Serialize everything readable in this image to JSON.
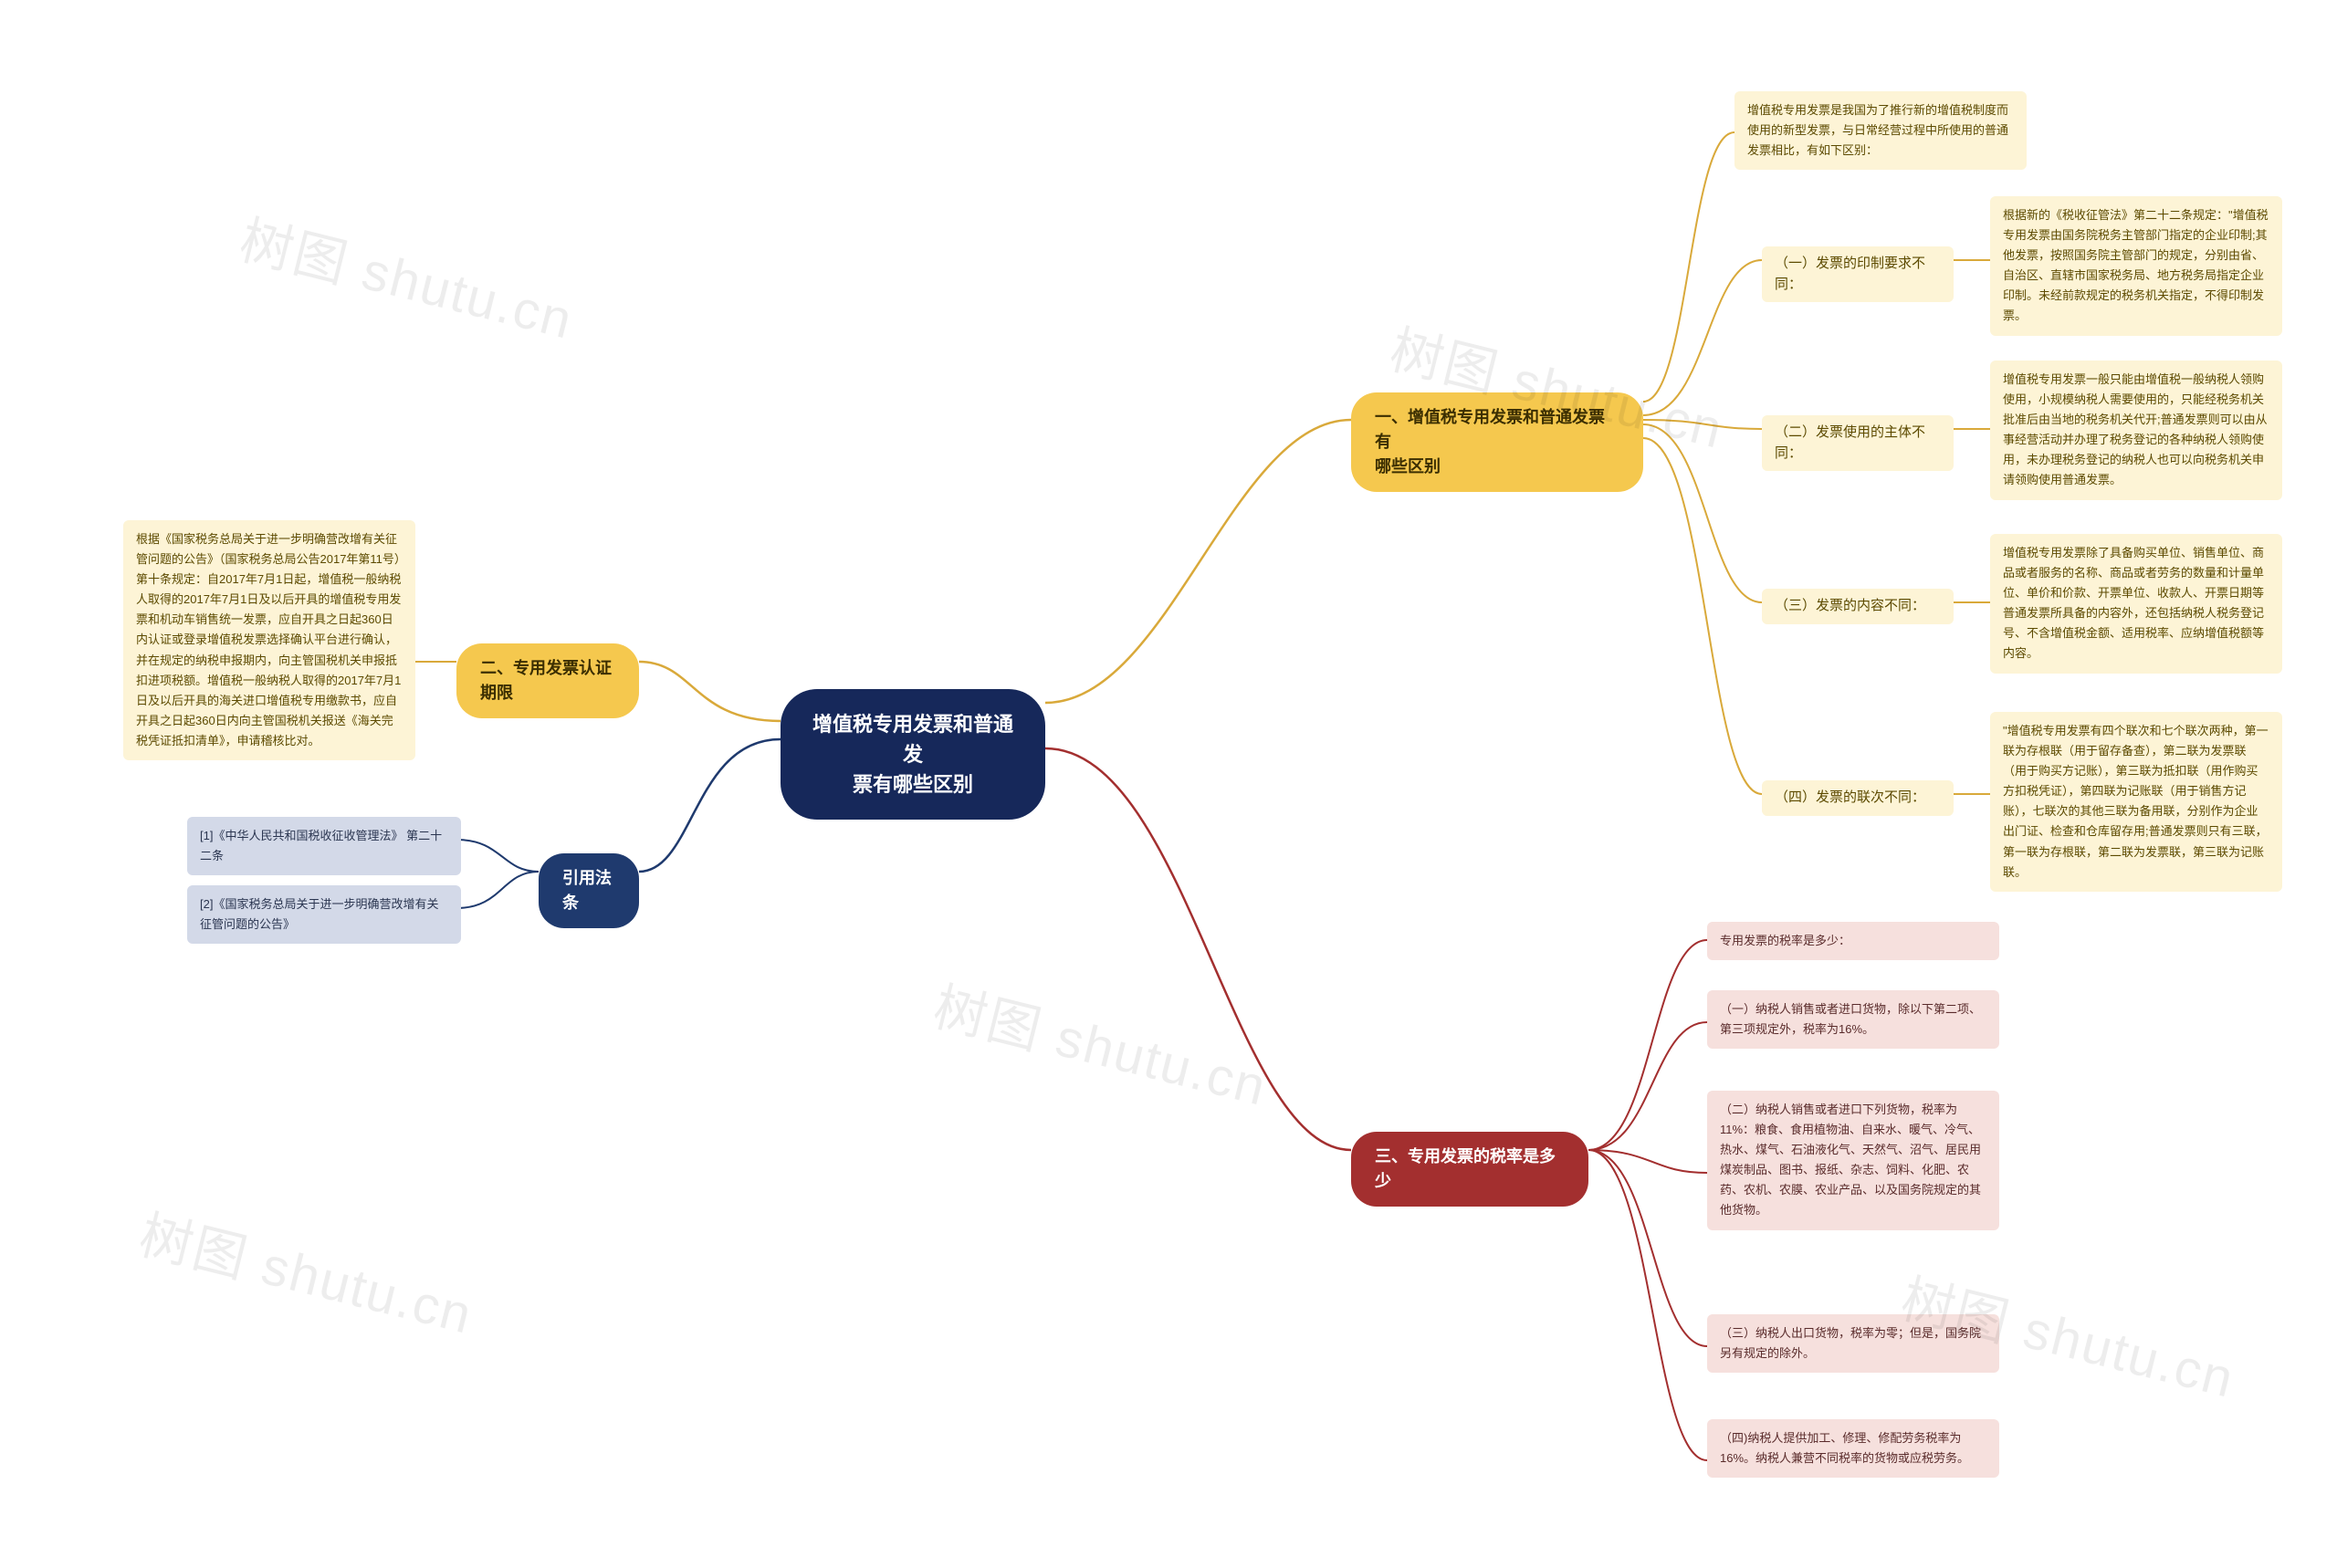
{
  "colors": {
    "center_bg": "#16285a",
    "center_text": "#ffffff",
    "yellow_bg": "#f5c84e",
    "yellow_text": "#3b2e00",
    "yellow_leaf_bg": "#fdf4d6",
    "yellow_leaf_text": "#5c4a00",
    "navy_bg": "#1f3a6e",
    "navy_text": "#ffffff",
    "navy_leaf_bg": "#d3d9e8",
    "navy_leaf_text": "#2a3550",
    "red_bg": "#a32f2f",
    "red_text": "#ffffff",
    "red_leaf_bg": "#f6e0dd",
    "red_leaf_text": "#5a2b2b",
    "edge_yellow": "#d9a93a",
    "edge_navy": "#1f3a6e",
    "edge_red": "#a32f2f",
    "watermark_color": "rgba(0,0,0,0.07)"
  },
  "center": {
    "text": "增值税专用发票和普通发\n票有哪些区别"
  },
  "branch1": {
    "title": "一、增值税专用发票和普通发票有\n哪些区别",
    "intro": "增值税专用发票是我国为了推行新的增值税制度而使用的新型发票，与日常经营过程中所使用的普通发票相比，有如下区别：",
    "sub1": {
      "label": "（一）发票的印制要求不同：",
      "text": "根据新的《税收征管法》第二十二条规定：\"增值税专用发票由国务院税务主管部门指定的企业印制;其他发票，按照国务院主管部门的规定，分别由省、自治区、直辖市国家税务局、地方税务局指定企业印制。未经前款规定的税务机关指定，不得印制发票。"
    },
    "sub2": {
      "label": "（二）发票使用的主体不同：",
      "text": "增值税专用发票一般只能由增值税一般纳税人领购使用，小规模纳税人需要使用的，只能经税务机关批准后由当地的税务机关代开;普通发票则可以由从事经营活动并办理了税务登记的各种纳税人领购使用，未办理税务登记的纳税人也可以向税务机关申请领购使用普通发票。"
    },
    "sub3": {
      "label": "（三）发票的内容不同：",
      "text": "增值税专用发票除了具备购买单位、销售单位、商品或者服务的名称、商品或者劳务的数量和计量单位、单价和价款、开票单位、收款人、开票日期等普通发票所具备的内容外，还包括纳税人税务登记号、不含增值税金额、适用税率、应纳增值税额等内容。"
    },
    "sub4": {
      "label": "（四）发票的联次不同：",
      "text": "\"增值税专用发票有四个联次和七个联次两种，第一联为存根联（用于留存备查），第二联为发票联（用于购买方记账），第三联为抵扣联（用作购买方扣税凭证），第四联为记账联（用于销售方记账），七联次的其他三联为备用联，分别作为企业出门证、检查和仓库留存用;普通发票则只有三联，第一联为存根联，第二联为发票联，第三联为记账联。"
    }
  },
  "branch2": {
    "title": "二、专用发票认证期限",
    "text": "根据《国家税务总局关于进一步明确营改增有关征管问题的公告》（国家税务总局公告2017年第11号）第十条规定：自2017年7月1日起，增值税一般纳税人取得的2017年7月1日及以后开具的增值税专用发票和机动车销售统一发票，应自开具之日起360日内认证或登录增值税发票选择确认平台进行确认，并在规定的纳税申报期内，向主管国税机关申报抵扣进项税额。增值税一般纳税人取得的2017年7月1日及以后开具的海关进口增值税专用缴款书，应自开具之日起360日内向主管国税机关报送《海关完税凭证抵扣清单》，申请稽核比对。"
  },
  "branch3": {
    "title": "三、专用发票的税率是多少",
    "leaf0": "专用发票的税率是多少：",
    "leaf1": "（一）纳税人销售或者进口货物，除以下第二项、第三项规定外，税率为16%。",
    "leaf2": "（二）纳税人销售或者进口下列货物，税率为11%：粮食、食用植物油、自来水、暖气、冷气、热水、煤气、石油液化气、天然气、沼气、居民用煤炭制品、图书、报纸、杂志、饲料、化肥、农药、农机、农膜、农业产品、以及国务院规定的其他货物。",
    "leaf3": "（三）纳税人出口货物，税率为零；但是，国务院另有规定的除外。",
    "leaf4": "（四)纳税人提供加工、修理、修配劳务税率为16%。纳税人兼营不同税率的货物或应税劳务。"
  },
  "branch4": {
    "title": "引用法条",
    "leaf1": "[1]《中华人民共和国税收征收管理法》 第二十二条",
    "leaf2": "[2]《国家税务总局关于进一步明确营改增有关征管问题的公告》"
  },
  "watermark": "树图 shutu.cn"
}
